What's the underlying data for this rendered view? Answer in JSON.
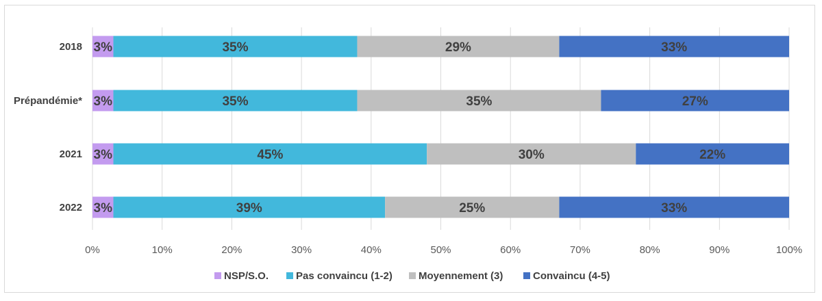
{
  "chart_data": {
    "type": "bar",
    "orientation": "horizontal",
    "stacked": true,
    "title": "",
    "xlabel": "",
    "ylabel": "",
    "xlim": [
      0,
      100
    ],
    "grid": true,
    "legend_position": "bottom",
    "categories": [
      "2018",
      "Prépandémie*",
      "2021",
      "2022"
    ],
    "x_ticks": [
      "0%",
      "10%",
      "20%",
      "30%",
      "40%",
      "50%",
      "60%",
      "70%",
      "80%",
      "90%",
      "100%"
    ],
    "series": [
      {
        "name": "NSP/S.O.",
        "color": "#c39bef",
        "values": [
          3,
          3,
          3,
          3
        ],
        "labels": [
          "3%",
          "3%",
          "3%",
          "3%"
        ]
      },
      {
        "name": "Pas convaincu (1-2)",
        "color": "#42b8dc",
        "values": [
          35,
          35,
          45,
          39
        ],
        "labels": [
          "35%",
          "35%",
          "45%",
          "39%"
        ]
      },
      {
        "name": "Moyennement (3)",
        "color": "#bfbfbf",
        "values": [
          29,
          35,
          30,
          25
        ],
        "labels": [
          "29%",
          "35%",
          "30%",
          "25%"
        ]
      },
      {
        "name": "Convaincu (4-5)",
        "color": "#4472c4",
        "values": [
          33,
          27,
          22,
          33
        ],
        "labels": [
          "33%",
          "27%",
          "22%",
          "33%"
        ]
      }
    ]
  }
}
